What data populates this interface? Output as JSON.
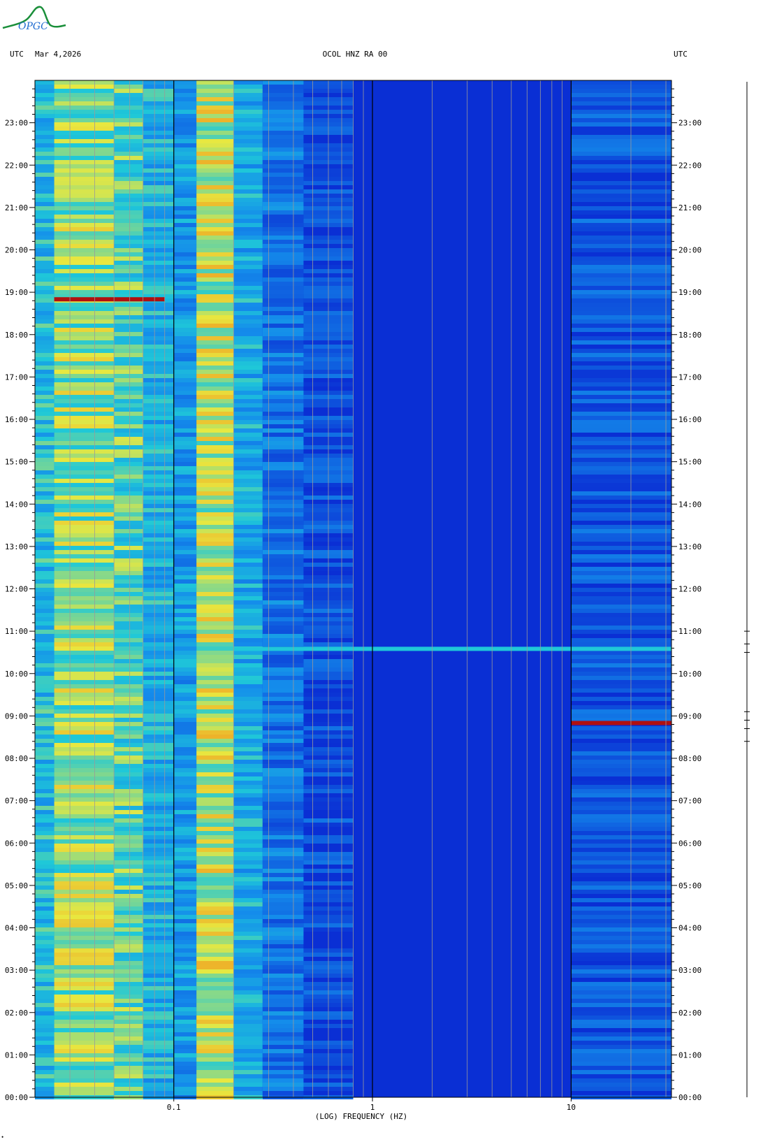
{
  "logo": {
    "text": "OPGC"
  },
  "header": {
    "left_tz": "UTC",
    "date": "Mar 4,2026",
    "station": "OCOL HNZ RA 00",
    "right_tz": "UTC"
  },
  "footer": {
    "mark": "•"
  },
  "colors": {
    "background": "#0a2fd4",
    "low_band": "#1fc8d8",
    "mid_band": "#e8e840",
    "hot": "#b01010",
    "grid_minor": "#9a9a9a",
    "grid_major": "#000000"
  },
  "chart_data": {
    "type": "heatmap",
    "title": "OCOL HNZ RA 00",
    "xlabel": "(LOG) FREQUENCY (HZ)",
    "ylabel": "",
    "x_scale": "log",
    "xlim": [
      0.02,
      32
    ],
    "x_ticks": [
      0.1,
      1,
      10
    ],
    "x_tick_labels": [
      "0.1",
      "1",
      "10"
    ],
    "ylim_hours": [
      0,
      24
    ],
    "y_ticks": [
      0,
      1,
      2,
      3,
      4,
      5,
      6,
      7,
      8,
      9,
      10,
      11,
      12,
      13,
      14,
      15,
      16,
      17,
      18,
      19,
      20,
      21,
      22,
      23
    ],
    "y_tick_labels": [
      "00:00",
      "01:00",
      "02:00",
      "03:00",
      "04:00",
      "05:00",
      "06:00",
      "07:00",
      "08:00",
      "09:00",
      "10:00",
      "11:00",
      "12:00",
      "13:00",
      "14:00",
      "15:00",
      "16:00",
      "17:00",
      "18:00",
      "19:00",
      "20:00",
      "21:00",
      "22:00",
      "23:00"
    ],
    "grid": true,
    "notable_events": [
      {
        "time": "18:50",
        "freq_range_hz": [
          0.025,
          0.09
        ],
        "intensity": "high"
      },
      {
        "time": "10:35",
        "freq_range_hz": [
          0.2,
          32
        ],
        "intensity": "medium"
      },
      {
        "time": "08:50",
        "freq_range_hz": [
          10,
          32
        ],
        "intensity": "high"
      }
    ]
  }
}
